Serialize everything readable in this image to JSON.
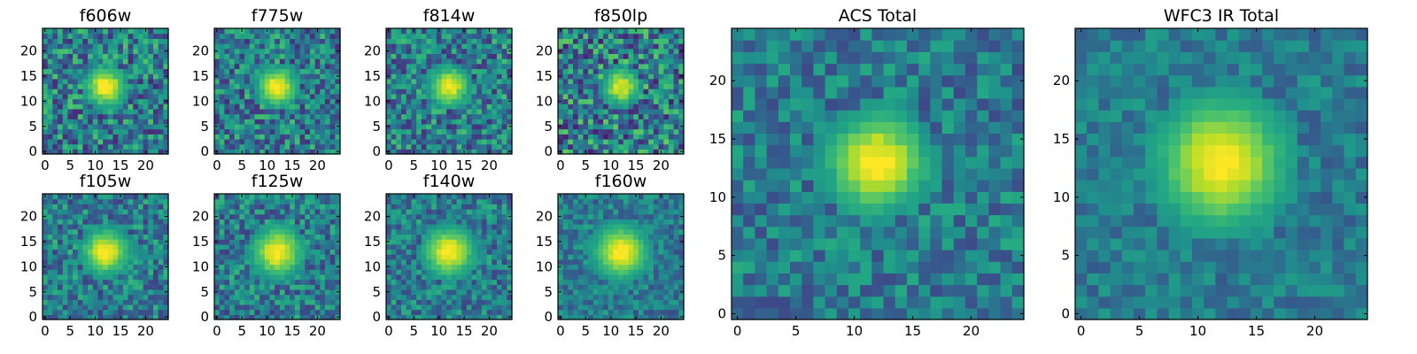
{
  "figure": {
    "description_free": true
  },
  "chart_data": [
    {
      "type": "heatmap",
      "title": "f606w",
      "colormap": "viridis",
      "grid_size": 25,
      "xticks": [
        0,
        5,
        10,
        15,
        20
      ],
      "yticks": [
        0,
        5,
        10,
        15,
        20
      ],
      "center": [
        12,
        13
      ],
      "peak": 0.95,
      "sigma": 2.4,
      "noise": 0.3,
      "seed": 11
    },
    {
      "type": "heatmap",
      "title": "f775w",
      "colormap": "viridis",
      "grid_size": 25,
      "xticks": [
        0,
        5,
        10,
        15,
        20
      ],
      "yticks": [
        0,
        5,
        10,
        15,
        20
      ],
      "center": [
        12,
        13
      ],
      "peak": 0.95,
      "sigma": 2.4,
      "noise": 0.28,
      "seed": 23
    },
    {
      "type": "heatmap",
      "title": "f814w",
      "colormap": "viridis",
      "grid_size": 25,
      "xticks": [
        0,
        5,
        10,
        15,
        20
      ],
      "yticks": [
        0,
        5,
        10,
        15,
        20
      ],
      "center": [
        12,
        13
      ],
      "peak": 0.9,
      "sigma": 2.4,
      "noise": 0.28,
      "seed": 37
    },
    {
      "type": "heatmap",
      "title": "f850lp",
      "colormap": "viridis",
      "grid_size": 25,
      "xticks": [
        0,
        5,
        10,
        15,
        20
      ],
      "yticks": [
        0,
        5,
        10,
        15,
        20
      ],
      "center": [
        12,
        13
      ],
      "peak": 0.85,
      "sigma": 2.2,
      "noise": 0.34,
      "seed": 41
    },
    {
      "type": "heatmap",
      "title": "f105w",
      "colormap": "viridis",
      "grid_size": 25,
      "xticks": [
        0,
        5,
        10,
        15,
        20
      ],
      "yticks": [
        0,
        5,
        10,
        15,
        20
      ],
      "center": [
        12,
        13
      ],
      "peak": 0.95,
      "sigma": 2.8,
      "noise": 0.24,
      "seed": 53
    },
    {
      "type": "heatmap",
      "title": "f125w",
      "colormap": "viridis",
      "grid_size": 25,
      "xticks": [
        0,
        5,
        10,
        15,
        20
      ],
      "yticks": [
        0,
        5,
        10,
        15,
        20
      ],
      "center": [
        12,
        13
      ],
      "peak": 0.95,
      "sigma": 3.0,
      "noise": 0.24,
      "seed": 67
    },
    {
      "type": "heatmap",
      "title": "f140w",
      "colormap": "viridis",
      "grid_size": 25,
      "xticks": [
        0,
        5,
        10,
        15,
        20
      ],
      "yticks": [
        0,
        5,
        10,
        15,
        20
      ],
      "center": [
        12,
        13
      ],
      "peak": 0.95,
      "sigma": 3.0,
      "noise": 0.22,
      "seed": 71
    },
    {
      "type": "heatmap",
      "title": "f160w",
      "colormap": "viridis",
      "grid_size": 25,
      "xticks": [
        0,
        5,
        10,
        15,
        20
      ],
      "yticks": [
        0,
        5,
        10,
        15,
        20
      ],
      "center": [
        12,
        13
      ],
      "peak": 0.95,
      "sigma": 3.2,
      "noise": 0.18,
      "seed": 83
    },
    {
      "type": "heatmap",
      "title": "ACS Total",
      "colormap": "viridis",
      "grid_size": 25,
      "xticks": [
        0,
        5,
        10,
        15,
        20
      ],
      "yticks": [
        0,
        5,
        10,
        15,
        20
      ],
      "center": [
        12,
        13
      ],
      "peak": 0.95,
      "sigma": 2.6,
      "noise": 0.2,
      "seed": 97
    },
    {
      "type": "heatmap",
      "title": "WFC3 IR Total",
      "colormap": "viridis",
      "grid_size": 25,
      "xticks": [
        0,
        5,
        10,
        15,
        20
      ],
      "yticks": [
        0,
        5,
        10,
        15,
        20
      ],
      "center": [
        12,
        13
      ],
      "peak": 0.95,
      "sigma": 3.4,
      "noise": 0.14,
      "seed": 101
    }
  ]
}
